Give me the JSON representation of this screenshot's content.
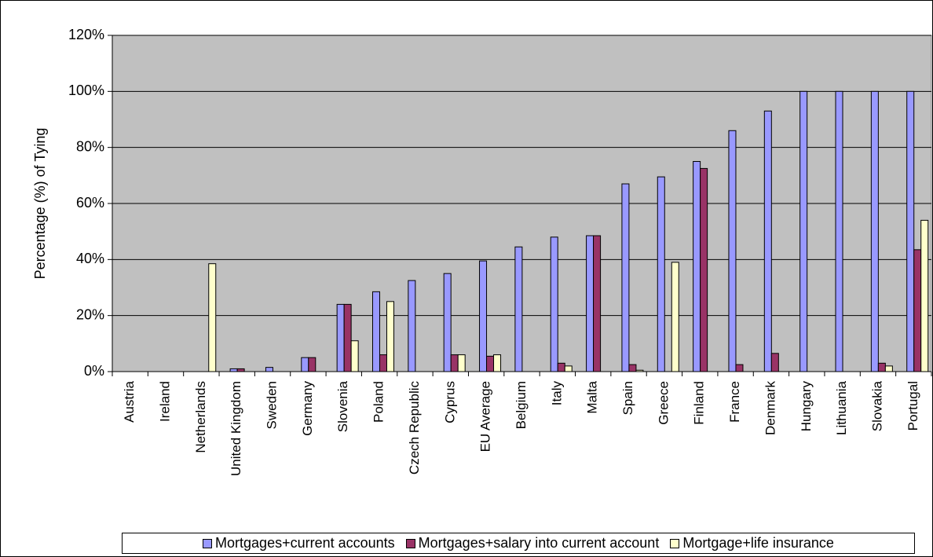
{
  "chart_data": {
    "type": "bar",
    "ylabel": "Percentage (%) of Tying",
    "xlabel": "",
    "ylim": [
      0,
      120
    ],
    "yticks": [
      "0%",
      "20%",
      "40%",
      "60%",
      "80%",
      "100%",
      "120%"
    ],
    "grid": true,
    "legend_position": "bottom",
    "plot_background": "#c0c0c0",
    "categories": [
      "Austria",
      "Ireland",
      "Netherlands",
      "United Kingdom",
      "Sweden",
      "Germany",
      "Slovenia",
      "Poland",
      "Czech Republic",
      "Cyprus",
      "EU Average",
      "Belgium",
      "Italy",
      "Malta",
      "Spain",
      "Greece",
      "Finland",
      "France",
      "Denmark",
      "Hungary",
      "Lithuania",
      "Slovakia",
      "Portugal"
    ],
    "series": [
      {
        "name": "Mortgages+current accounts",
        "color": "#9999ff",
        "values": [
          0,
          0,
          0,
          1,
          1.5,
          5,
          24,
          28.5,
          32.5,
          35,
          39.5,
          44.5,
          48,
          48.5,
          67,
          69.5,
          75,
          86,
          93,
          100,
          100,
          100,
          100
        ]
      },
      {
        "name": "Mortgages+salary into current account",
        "color": "#993366",
        "values": [
          0,
          0,
          0,
          1,
          0,
          5,
          24,
          6,
          0,
          6,
          5.5,
          0,
          3,
          48.5,
          2.5,
          0,
          72.5,
          2.5,
          6.5,
          0,
          0,
          3,
          43.5
        ]
      },
      {
        "name": "Mortgage+life insurance",
        "color": "#ffffcc",
        "values": [
          0,
          0,
          38.5,
          0,
          0,
          0,
          11,
          25,
          0,
          6,
          6,
          0,
          2,
          0,
          0.5,
          39,
          0,
          0,
          0,
          0,
          0,
          2,
          54
        ]
      }
    ]
  }
}
